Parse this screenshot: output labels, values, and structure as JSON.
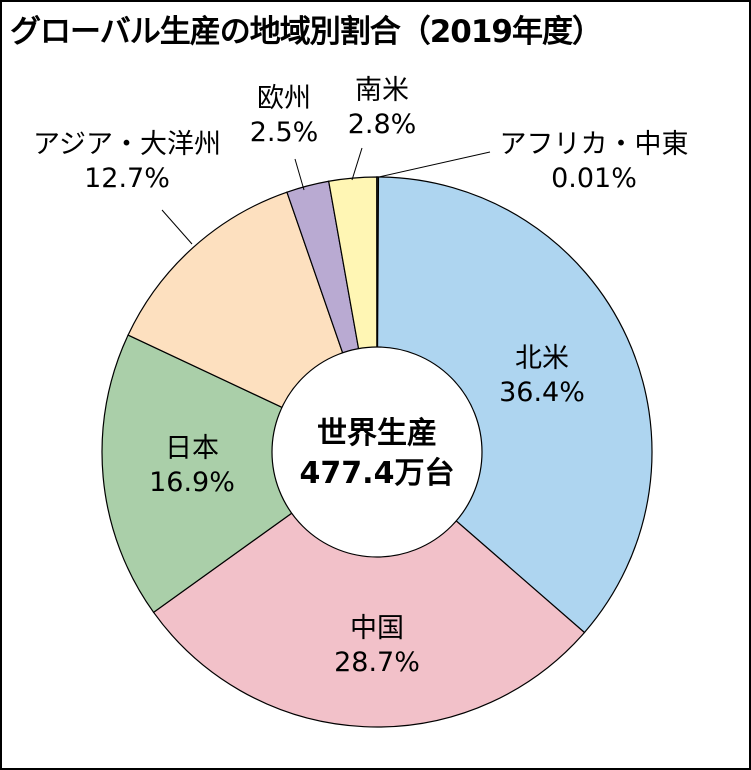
{
  "chart_data": {
    "type": "pie",
    "title": "グローバル生産の地域別割合（2019年度）",
    "center_label": {
      "line1": "世界生産",
      "line2": "477.4万台"
    },
    "slices": [
      {
        "name": "北米",
        "value": 36.4,
        "label": "36.4%",
        "color": "#aed5f0"
      },
      {
        "name": "中国",
        "value": 28.7,
        "label": "28.7%",
        "color": "#f2c1c9"
      },
      {
        "name": "日本",
        "value": 16.9,
        "label": "16.9%",
        "color": "#aacfa9"
      },
      {
        "name": "アジア・大洋州",
        "value": 12.7,
        "label": "12.7%",
        "color": "#fde0bf"
      },
      {
        "name": "欧州",
        "value": 2.5,
        "label": "2.5%",
        "color": "#b9aad2"
      },
      {
        "name": "南米",
        "value": 2.8,
        "label": "2.8%",
        "color": "#fff6b4"
      },
      {
        "name": "アフリカ・中東",
        "value": 0.01,
        "label": "0.01%",
        "color": "#333333"
      }
    ]
  }
}
